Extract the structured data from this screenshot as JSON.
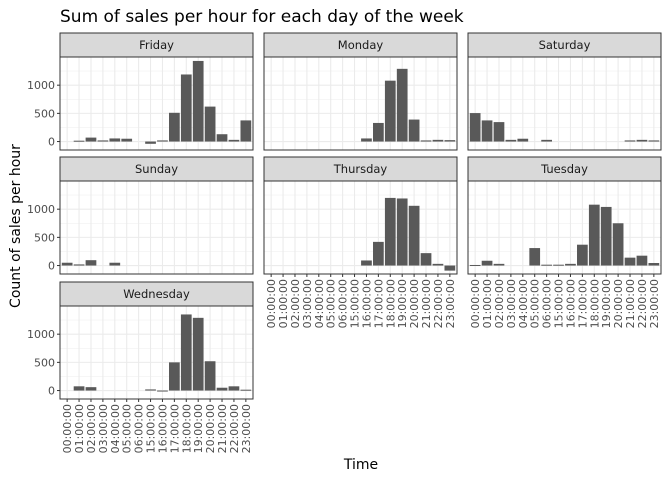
{
  "chart_data": {
    "type": "bar",
    "title": "Sum of sales per hour for each day of the week",
    "xlabel": "Time",
    "ylabel": "Count of sales per hour",
    "ylim": [
      -150,
      1500
    ],
    "yticks": [
      0,
      500,
      1000
    ],
    "grid": true,
    "legend": "none",
    "bar_color": "#595959",
    "categories": [
      "00:00:00",
      "01:00:00",
      "02:00:00",
      "03:00:00",
      "04:00:00",
      "05:00:00",
      "06:00:00",
      "15:00:00",
      "16:00:00",
      "17:00:00",
      "18:00:00",
      "19:00:00",
      "20:00:00",
      "21:00:00",
      "22:00:00",
      "23:00:00"
    ],
    "series": [
      {
        "name": "Friday",
        "values": [
          0,
          15,
          70,
          20,
          55,
          50,
          0,
          -40,
          20,
          510,
          1190,
          1430,
          620,
          130,
          30,
          375
        ]
      },
      {
        "name": "Monday",
        "values": [
          0,
          0,
          0,
          0,
          0,
          0,
          0,
          0,
          55,
          330,
          1080,
          1290,
          390,
          20,
          30,
          25
        ]
      },
      {
        "name": "Saturday",
        "values": [
          505,
          375,
          345,
          30,
          50,
          0,
          30,
          0,
          0,
          0,
          0,
          0,
          0,
          20,
          30,
          20
        ]
      },
      {
        "name": "Sunday",
        "values": [
          50,
          20,
          95,
          0,
          50,
          0,
          0,
          0,
          0,
          0,
          0,
          0,
          0,
          0,
          0,
          0
        ]
      },
      {
        "name": "Thursday",
        "values": [
          0,
          0,
          0,
          0,
          0,
          0,
          0,
          0,
          90,
          420,
          1200,
          1190,
          1060,
          220,
          30,
          -90
        ]
      },
      {
        "name": "Tuesday",
        "values": [
          10,
          85,
          30,
          0,
          0,
          310,
          15,
          15,
          30,
          370,
          1080,
          1040,
          750,
          140,
          175,
          45
        ]
      },
      {
        "name": "Wednesday",
        "values": [
          0,
          75,
          60,
          0,
          0,
          0,
          0,
          20,
          -15,
          500,
          1350,
          1290,
          520,
          50,
          75,
          15
        ]
      }
    ]
  }
}
